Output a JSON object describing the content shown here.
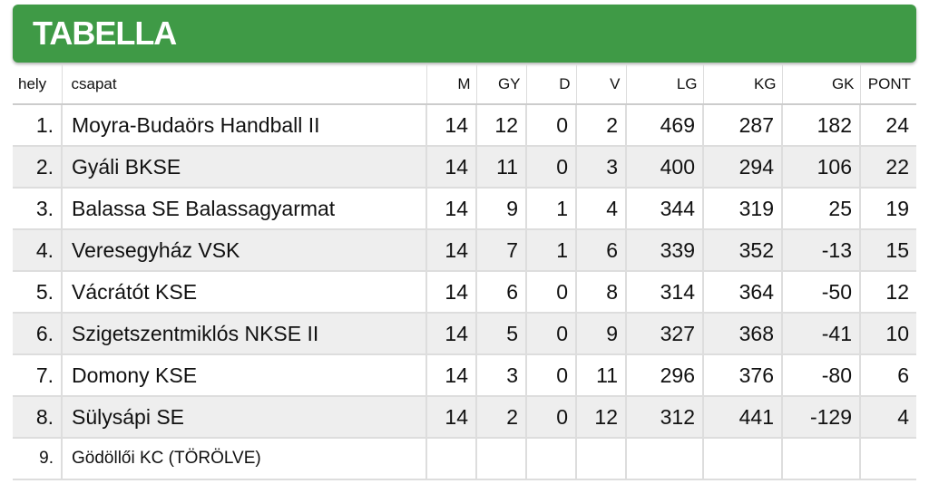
{
  "header": {
    "title": "TABELLA"
  },
  "table": {
    "columns": [
      "hely",
      "csapat",
      "M",
      "GY",
      "D",
      "V",
      "LG",
      "KG",
      "GK",
      "PONT"
    ],
    "rows": [
      [
        "1.",
        "Moyra-Budaörs Handball II",
        "14",
        "12",
        "0",
        "2",
        "469",
        "287",
        "182",
        "24"
      ],
      [
        "2.",
        "Gyáli BKSE",
        "14",
        "11",
        "0",
        "3",
        "400",
        "294",
        "106",
        "22"
      ],
      [
        "3.",
        "Balassa SE Balassagyarmat",
        "14",
        "9",
        "1",
        "4",
        "344",
        "319",
        "25",
        "19"
      ],
      [
        "4.",
        "Veresegyház VSK",
        "14",
        "7",
        "1",
        "6",
        "339",
        "352",
        "-13",
        "15"
      ],
      [
        "5.",
        "Vácrátót KSE",
        "14",
        "6",
        "0",
        "8",
        "314",
        "364",
        "-50",
        "12"
      ],
      [
        "6.",
        "Szigetszentmiklós NKSE II",
        "14",
        "5",
        "0",
        "9",
        "327",
        "368",
        "-41",
        "10"
      ],
      [
        "7.",
        "Domony KSE",
        "14",
        "3",
        "0",
        "11",
        "296",
        "376",
        "-80",
        "6"
      ],
      [
        "8.",
        "Sülysápi SE",
        "14",
        "2",
        "0",
        "12",
        "312",
        "441",
        "-129",
        "4"
      ],
      [
        "9.",
        "Gödöllői KC (TÖRÖLVE)"
      ]
    ]
  }
}
